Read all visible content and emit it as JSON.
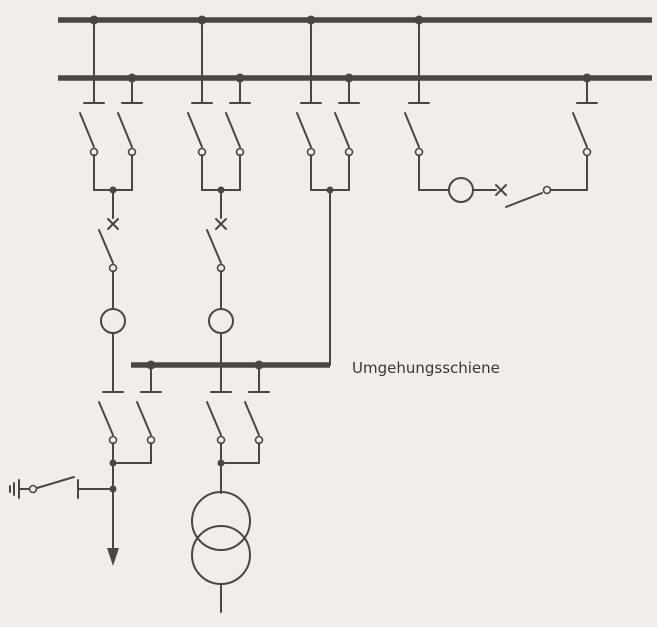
{
  "diagram": {
    "bypass_bus_label": "Umgehungsschiene"
  }
}
